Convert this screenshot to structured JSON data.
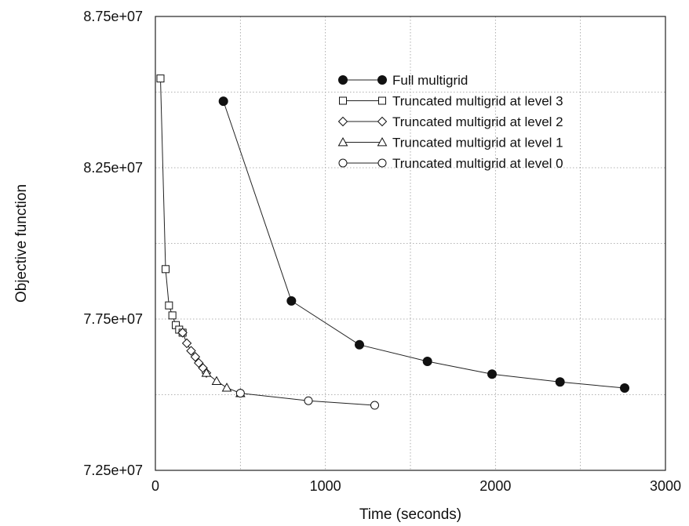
{
  "chart_data": {
    "type": "line",
    "xlabel": "Time (seconds)",
    "ylabel": "Objective function",
    "xlim": [
      0,
      3000
    ],
    "ylim": [
      72500000,
      87500000
    ],
    "x_ticks": [
      0,
      1000,
      2000,
      3000
    ],
    "x_tick_labels": [
      "0",
      "1000",
      "2000",
      "3000"
    ],
    "y_ticks": [
      72500000,
      77500000,
      82500000,
      87500000
    ],
    "y_tick_labels": [
      "7.25e+07",
      "7.75e+07",
      "8.25e+07",
      "8.75e+07"
    ],
    "grid": true,
    "legend_position": "top-right",
    "series": [
      {
        "name": "Full multigrid",
        "marker": "filled-circle",
        "points": [
          [
            400,
            84700000
          ],
          [
            800,
            78100000
          ],
          [
            1200,
            76650000
          ],
          [
            1600,
            76100000
          ],
          [
            1980,
            75680000
          ],
          [
            2380,
            75420000
          ],
          [
            2760,
            75220000
          ]
        ]
      },
      {
        "name": "Truncated multigrid at level 3",
        "marker": "square",
        "points": [
          [
            30,
            85450000
          ],
          [
            60,
            79150000
          ],
          [
            80,
            77950000
          ],
          [
            100,
            77620000
          ],
          [
            120,
            77300000
          ],
          [
            140,
            77150000
          ],
          [
            160,
            77050000
          ]
        ]
      },
      {
        "name": "Truncated multigrid at level 2",
        "marker": "diamond",
        "points": [
          [
            160,
            77050000
          ],
          [
            185,
            76700000
          ],
          [
            210,
            76450000
          ],
          [
            235,
            76250000
          ],
          [
            255,
            76050000
          ],
          [
            280,
            75880000
          ],
          [
            300,
            75720000
          ]
        ]
      },
      {
        "name": "Truncated multigrid at level 1",
        "marker": "triangle",
        "points": [
          [
            300,
            75720000
          ],
          [
            360,
            75450000
          ],
          [
            420,
            75230000
          ],
          [
            500,
            75050000
          ]
        ]
      },
      {
        "name": "Truncated multigrid at level 0",
        "marker": "circle",
        "points": [
          [
            500,
            75050000
          ],
          [
            900,
            74800000
          ],
          [
            1290,
            74650000
          ]
        ]
      }
    ]
  }
}
